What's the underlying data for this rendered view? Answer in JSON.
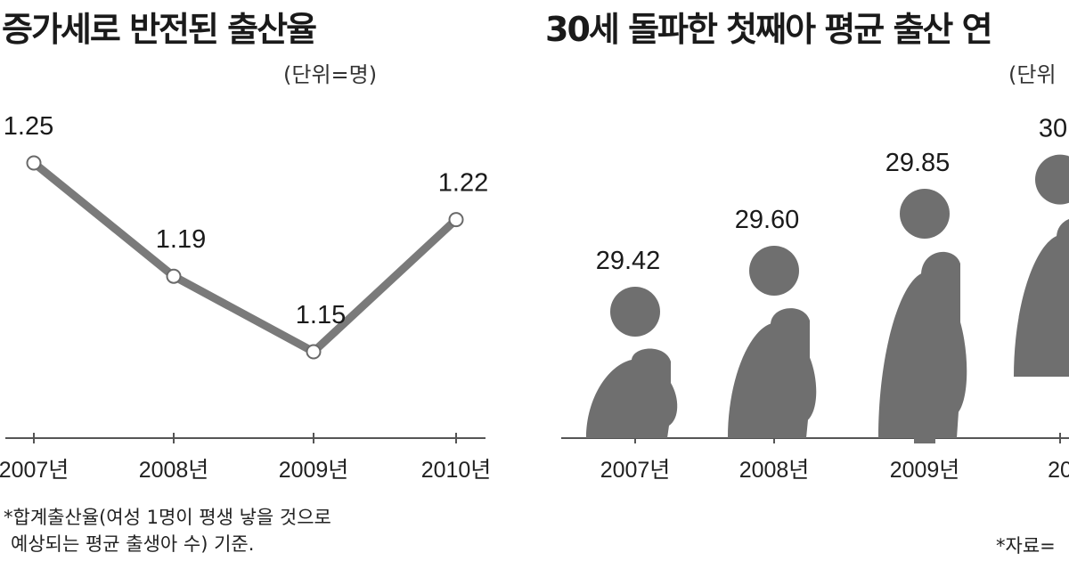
{
  "chart_data": [
    {
      "type": "line",
      "title": "증가세로 반전된 출산율",
      "unit": "(단위=명)",
      "categories": [
        "2007년",
        "2008년",
        "2009년",
        "2010년"
      ],
      "values": [
        1.25,
        1.19,
        1.15,
        1.22
      ],
      "value_labels": [
        "1.25",
        "1.19",
        "1.15",
        "1.22"
      ],
      "note": [
        "*합계출산율(여성 1명이 평생 낳을 것으로",
        "예상되는 평균 출생아 수) 기준."
      ],
      "series_color": "#7a7a7a",
      "grid": false,
      "legend": "none"
    },
    {
      "type": "bar",
      "title": "30세 돌파한 첫째아 평균 출산 연",
      "unit": "(단위",
      "categories": [
        "2007년",
        "2008년",
        "2009년",
        "20"
      ],
      "values": [
        29.42,
        29.6,
        29.85,
        30.0
      ],
      "value_labels": [
        "29.42",
        "29.60",
        "29.85",
        "30"
      ],
      "source": "*자료=",
      "bar_color": "#6f6f6f",
      "grid": false,
      "legend": "none"
    }
  ]
}
